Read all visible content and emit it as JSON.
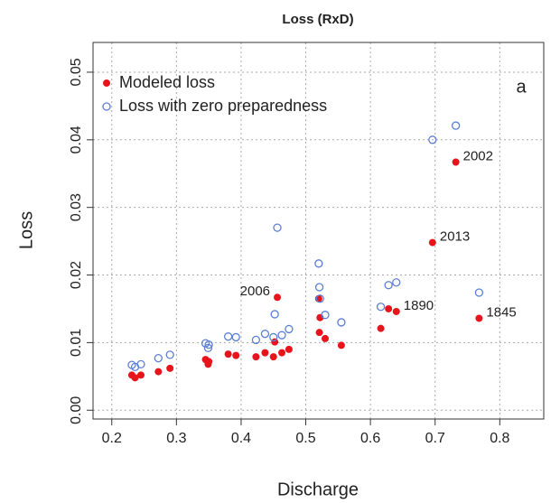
{
  "chart_data": {
    "type": "scatter",
    "title": "Loss (RxD)",
    "xlabel": "Discharge",
    "ylabel": "Loss",
    "panel_label": "a",
    "x": [
      0.231,
      0.236,
      0.245,
      0.272,
      0.29,
      0.345,
      0.349,
      0.35,
      0.38,
      0.392,
      0.423,
      0.437,
      0.45,
      0.452,
      0.456,
      0.463,
      0.474,
      0.52,
      0.521,
      0.522,
      0.53,
      0.555,
      0.616,
      0.628,
      0.64,
      0.696,
      0.732,
      0.768
    ],
    "series": [
      {
        "name": "Modeled loss",
        "color": "#e8141c",
        "filled": true,
        "values": [
          0.0052,
          0.0048,
          0.0052,
          0.0057,
          0.0062,
          0.0075,
          0.0068,
          0.0072,
          0.0083,
          0.0081,
          0.0079,
          0.0085,
          0.0079,
          0.0101,
          0.0167,
          0.0085,
          0.009,
          0.0165,
          0.0115,
          0.0137,
          0.0106,
          0.0096,
          0.0121,
          0.015,
          0.0146,
          0.0248,
          0.0367,
          0.0136
        ],
        "point_labels": [
          null,
          null,
          null,
          null,
          null,
          null,
          null,
          null,
          null,
          null,
          null,
          null,
          null,
          null,
          "2006",
          null,
          null,
          null,
          null,
          null,
          null,
          null,
          null,
          null,
          "1890",
          "2013",
          "2002",
          "1845"
        ]
      },
      {
        "name": "Loss with zero preparedness",
        "color": "#5b7fd6",
        "filled": false,
        "values": [
          0.0067,
          0.0064,
          0.0068,
          0.0077,
          0.0082,
          0.0099,
          0.0092,
          0.0097,
          0.0109,
          0.0108,
          0.0104,
          0.0113,
          0.0108,
          0.0142,
          0.027,
          0.0111,
          0.012,
          0.0217,
          0.0182,
          0.0165,
          0.0141,
          0.013,
          0.0153,
          0.0185,
          0.0189,
          0.04,
          0.0421,
          0.0174
        ]
      }
    ],
    "xlim": [
      0.171,
      0.868
    ],
    "ylim": [
      -0.0013,
      0.0544
    ],
    "xticks": [
      0.2,
      0.3,
      0.4,
      0.5,
      0.6,
      0.7,
      0.8
    ],
    "yticks": [
      {
        "value": 0,
        "label": "0.00"
      },
      0.01,
      0.02,
      0.03,
      0.04,
      0.05
    ],
    "grid": true,
    "legend": "top-left"
  }
}
